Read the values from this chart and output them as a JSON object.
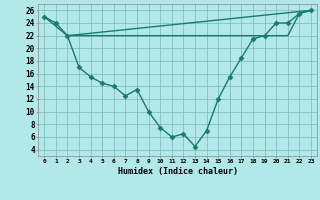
{
  "line1_x": [
    0,
    2,
    3,
    4,
    5,
    6,
    7,
    8,
    9,
    10,
    11,
    12,
    13,
    14,
    15,
    16,
    17,
    18,
    19,
    20,
    21,
    22,
    23
  ],
  "line1_y": [
    25,
    22,
    22,
    22,
    22,
    22,
    22,
    22,
    22,
    22,
    22,
    22,
    22,
    22,
    22,
    22,
    22,
    22,
    22,
    22,
    22,
    25.5,
    26
  ],
  "line2_x": [
    2,
    23
  ],
  "line2_y": [
    22,
    26
  ],
  "line3_x": [
    0,
    1,
    2,
    3,
    4,
    5,
    6,
    7,
    8,
    9,
    10,
    11,
    12,
    13,
    14,
    15,
    16,
    17,
    18,
    19,
    20,
    21,
    22,
    23
  ],
  "line3_y": [
    25,
    24,
    22,
    17,
    15.5,
    14.5,
    14,
    12.5,
    13.5,
    10,
    7.5,
    6,
    6.5,
    4.5,
    7,
    12,
    15.5,
    18.5,
    21.5,
    22,
    24,
    24,
    25.5,
    26
  ],
  "color": "#1a7a6e",
  "bg_color": "#b2e8e8",
  "grid_color": "#7ab8b8",
  "xlabel": "Humidex (Indice chaleur)",
  "xlim": [
    -0.5,
    23.5
  ],
  "ylim": [
    3,
    27
  ],
  "xtick_labels": [
    "0",
    "1",
    "2",
    "3",
    "4",
    "5",
    "6",
    "7",
    "8",
    "9",
    "10",
    "11",
    "12",
    "13",
    "14",
    "15",
    "16",
    "17",
    "18",
    "19",
    "20",
    "21",
    "22",
    "23"
  ],
  "ytick_values": [
    4,
    6,
    8,
    10,
    12,
    14,
    16,
    18,
    20,
    22,
    24,
    26
  ],
  "marker": "D",
  "markersize": 2.5,
  "linewidth": 1.0
}
